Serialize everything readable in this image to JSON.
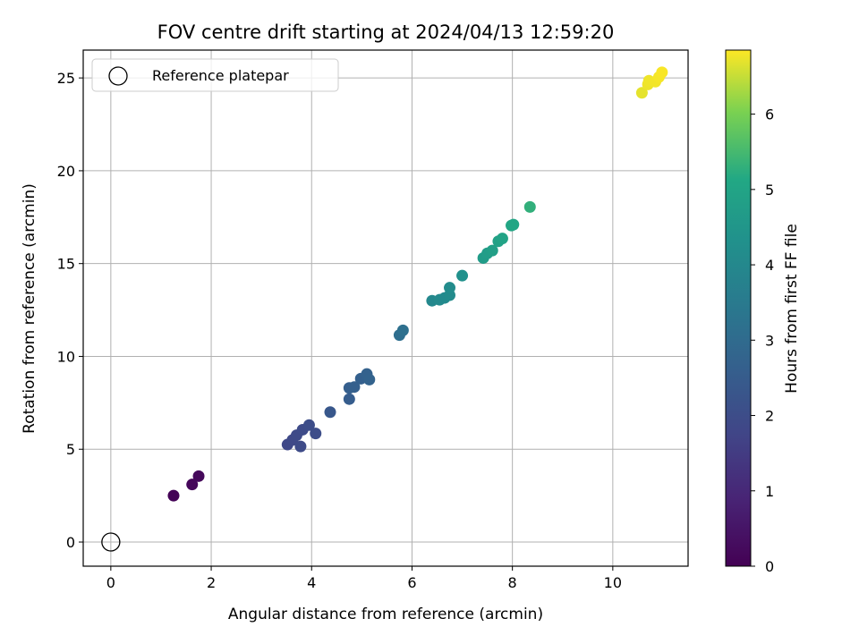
{
  "chart_data": {
    "type": "scatter",
    "title": "FOV centre drift starting at 2024/04/13 12:59:20",
    "xlabel": "Angular distance from reference (arcmin)",
    "ylabel": "Rotation from reference (arcmin)",
    "xlim": [
      -0.55,
      11.5
    ],
    "ylim": [
      -1.3,
      26.5
    ],
    "xticks": [
      0,
      2,
      4,
      6,
      8,
      10
    ],
    "yticks": [
      0,
      5,
      10,
      15,
      20,
      25
    ],
    "grid": true,
    "colormap": "viridis",
    "colorbar": {
      "label": "Hours from first FF file",
      "range": [
        0,
        6.85
      ],
      "ticks": [
        0,
        1,
        2,
        3,
        4,
        5,
        6
      ]
    },
    "legend": {
      "position": "top-left",
      "entries": [
        "Reference platepar"
      ]
    },
    "reference_point": {
      "x": 0,
      "y": 0
    },
    "points": [
      {
        "x": 1.25,
        "y": 2.5,
        "hours": 0.05
      },
      {
        "x": 1.62,
        "y": 3.1,
        "hours": 0.15
      },
      {
        "x": 1.75,
        "y": 3.55,
        "hours": 0.2
      },
      {
        "x": 3.52,
        "y": 5.25,
        "hours": 1.85
      },
      {
        "x": 3.62,
        "y": 5.5,
        "hours": 1.88
      },
      {
        "x": 3.7,
        "y": 5.75,
        "hours": 1.9
      },
      {
        "x": 3.78,
        "y": 5.15,
        "hours": 1.93
      },
      {
        "x": 3.82,
        "y": 6.05,
        "hours": 1.95
      },
      {
        "x": 3.95,
        "y": 6.3,
        "hours": 2.0
      },
      {
        "x": 4.08,
        "y": 5.85,
        "hours": 2.02
      },
      {
        "x": 4.37,
        "y": 7.0,
        "hours": 2.35
      },
      {
        "x": 4.75,
        "y": 7.7,
        "hours": 2.55
      },
      {
        "x": 4.75,
        "y": 8.3,
        "hours": 2.6
      },
      {
        "x": 4.85,
        "y": 8.35,
        "hours": 2.62
      },
      {
        "x": 4.98,
        "y": 8.8,
        "hours": 2.65
      },
      {
        "x": 5.1,
        "y": 9.05,
        "hours": 2.7
      },
      {
        "x": 5.15,
        "y": 8.75,
        "hours": 2.72
      },
      {
        "x": 5.75,
        "y": 11.15,
        "hours": 3.1
      },
      {
        "x": 5.82,
        "y": 11.4,
        "hours": 3.15
      },
      {
        "x": 6.4,
        "y": 13.0,
        "hours": 4.0
      },
      {
        "x": 6.55,
        "y": 13.05,
        "hours": 4.05
      },
      {
        "x": 6.65,
        "y": 13.15,
        "hours": 4.08
      },
      {
        "x": 6.75,
        "y": 13.3,
        "hours": 4.1
      },
      {
        "x": 6.75,
        "y": 13.7,
        "hours": 4.15
      },
      {
        "x": 7.0,
        "y": 14.35,
        "hours": 4.3
      },
      {
        "x": 7.42,
        "y": 15.3,
        "hours": 4.7
      },
      {
        "x": 7.5,
        "y": 15.55,
        "hours": 4.75
      },
      {
        "x": 7.6,
        "y": 15.7,
        "hours": 4.8
      },
      {
        "x": 7.72,
        "y": 16.2,
        "hours": 4.9
      },
      {
        "x": 7.8,
        "y": 16.35,
        "hours": 4.95
      },
      {
        "x": 7.98,
        "y": 17.05,
        "hours": 5.05
      },
      {
        "x": 8.02,
        "y": 17.1,
        "hours": 5.08
      },
      {
        "x": 8.35,
        "y": 18.05,
        "hours": 5.3
      },
      {
        "x": 10.58,
        "y": 24.2,
        "hours": 6.7
      },
      {
        "x": 10.7,
        "y": 24.65,
        "hours": 6.75
      },
      {
        "x": 10.72,
        "y": 24.85,
        "hours": 6.76
      },
      {
        "x": 10.85,
        "y": 24.8,
        "hours": 6.78
      },
      {
        "x": 10.92,
        "y": 25.05,
        "hours": 6.8
      },
      {
        "x": 10.98,
        "y": 25.3,
        "hours": 6.82
      }
    ]
  }
}
